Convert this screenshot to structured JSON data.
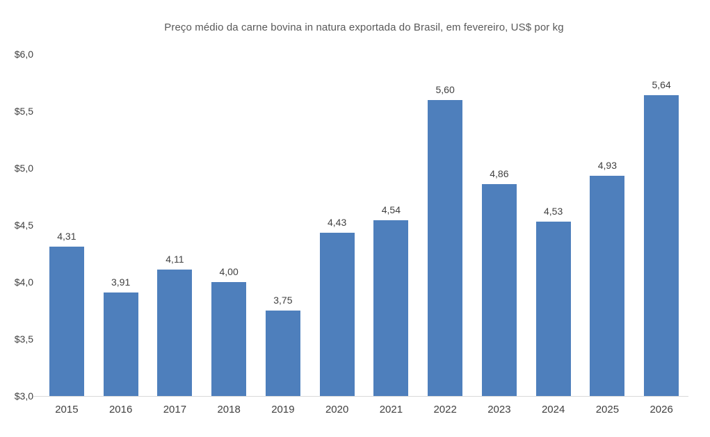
{
  "chart_data": {
    "type": "bar",
    "title": "Preço médio da carne bovina in natura exportada do Brasil, em fevereiro, US$ por kg",
    "categories": [
      "2015",
      "2016",
      "2017",
      "2018",
      "2019",
      "2020",
      "2021",
      "2022",
      "2023",
      "2024",
      "2025",
      "2026"
    ],
    "values": [
      4.31,
      3.91,
      4.11,
      4.0,
      3.75,
      4.43,
      4.54,
      5.6,
      4.86,
      4.53,
      4.93,
      5.64
    ],
    "value_labels": [
      "4,31",
      "3,91",
      "4,11",
      "4,00",
      "3,75",
      "4,43",
      "4,54",
      "5,60",
      "4,86",
      "4,53",
      "4,93",
      "5,64"
    ],
    "xlabel": "",
    "ylabel": "",
    "ylim": [
      3.0,
      6.0
    ],
    "y_tick_step": 0.5,
    "y_tick_labels_top_to_bottom": [
      "$6,0",
      "$5,5",
      "$5,0",
      "$4,5",
      "$4,0",
      "$3,5",
      "$3,0"
    ],
    "grid": false,
    "legend": "none",
    "colors": {
      "bar": "#4E7FBC",
      "value_label_text": "#404040",
      "axis_label_text": "#404040",
      "title_text": "#595959",
      "axis_line": "#D9D9D9",
      "background": "#FFFFFF"
    }
  }
}
